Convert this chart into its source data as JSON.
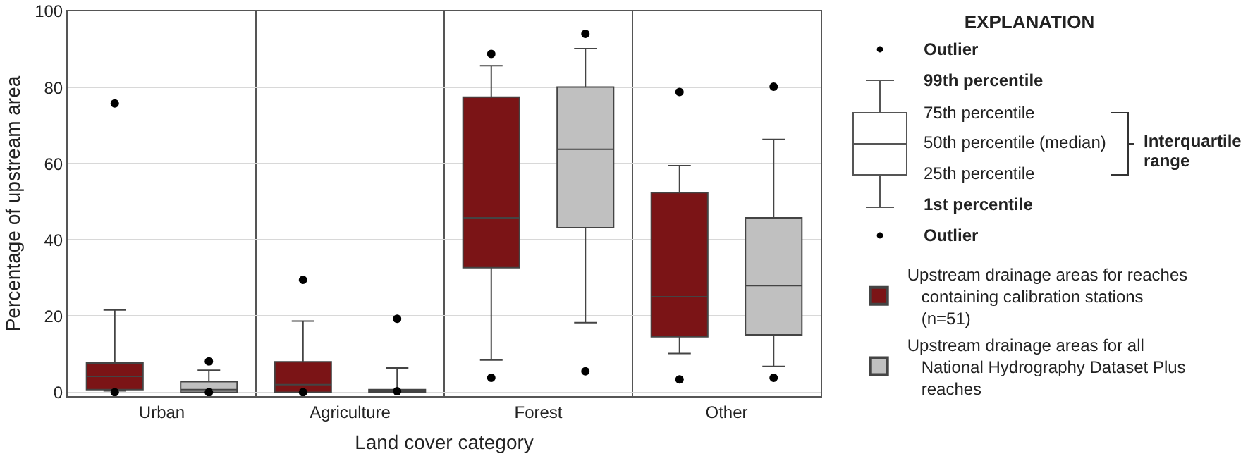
{
  "chart_data": {
    "type": "box",
    "xlabel": "Land cover category",
    "ylabel": "Percentage of upstream area",
    "legend_title": "EXPLANATION",
    "categories": [
      "Urban",
      "Agriculture",
      "Forest",
      "Other"
    ],
    "ylim": [
      -1,
      100
    ],
    "yticks": [
      0,
      20,
      40,
      60,
      80,
      100
    ],
    "grid": "y",
    "legend": "right",
    "marker": "circle",
    "annotations": [
      "Outlier",
      "99th percentile",
      "75th percentile",
      "50th percentile (median)",
      "25th percentile",
      "1st percentile",
      "Outlier",
      "Interquartile range"
    ],
    "series": [
      {
        "name": "Upstream drainage areas for reaches containing calibration stations (n=51)",
        "color": "#7b1416",
        "boxes": [
          {
            "low": 0.4,
            "q1": 0.7,
            "median": 4.2,
            "q3": 7.7,
            "high": 21.6,
            "outliers": [
              75.8,
              0
            ]
          },
          {
            "low": 0,
            "q1": 0,
            "median": 2.0,
            "q3": 8.0,
            "high": 18.7,
            "outliers": [
              29.5,
              0
            ]
          },
          {
            "low": 8.5,
            "q1": 32.7,
            "median": 45.8,
            "q3": 77.5,
            "high": 85.7,
            "outliers": [
              88.8,
              3.8
            ]
          },
          {
            "low": 10.2,
            "q1": 14.6,
            "median": 25.1,
            "q3": 52.4,
            "high": 59.5,
            "outliers": [
              78.8,
              3.4
            ]
          }
        ]
      },
      {
        "name": "Upstream drainage areas for all National Hydrography Dataset Plus reaches",
        "color": "#c0c0c0",
        "boxes": [
          {
            "low": 0,
            "q1": 0,
            "median": 0.7,
            "q3": 2.8,
            "high": 5.8,
            "outliers": [
              8.1,
              0
            ]
          },
          {
            "low": 0,
            "q1": 0,
            "median": 0.4,
            "q3": 0.7,
            "high": 6.4,
            "outliers": [
              19.3,
              0.3
            ]
          },
          {
            "low": 18.3,
            "q1": 43.2,
            "median": 63.8,
            "q3": 80.1,
            "high": 90.2,
            "outliers": [
              94.1,
              5.5
            ]
          },
          {
            "low": 6.8,
            "q1": 15.1,
            "median": 28.0,
            "q3": 45.8,
            "high": 66.4,
            "outliers": [
              80.2,
              3.8
            ]
          }
        ]
      }
    ]
  }
}
